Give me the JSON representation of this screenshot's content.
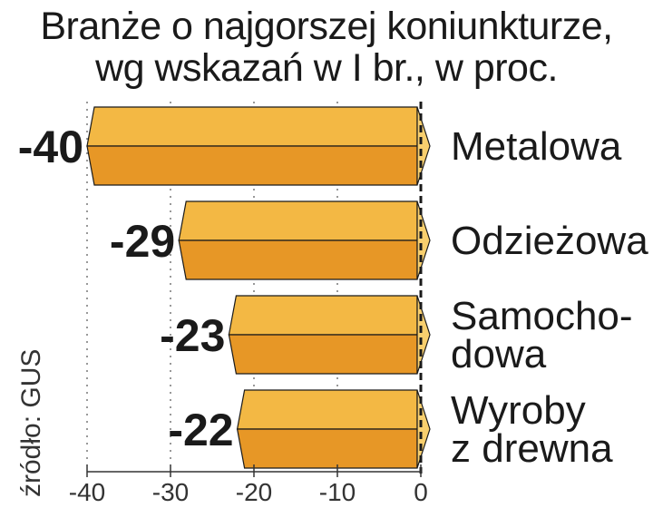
{
  "header": {
    "title_line1": "Branże o najgorszej koniunkturze,",
    "title_line2": "wg wskazań w I br., w proc."
  },
  "source": "źródło: GUS",
  "colors": {
    "bar_top": "#f3b844",
    "bar_bottom": "#e79726",
    "bar_tip": "#f8cf6e",
    "outline": "#1a1a1a",
    "grid": "#333333"
  },
  "chart_data": {
    "type": "bar",
    "orientation": "horizontal",
    "title": "Branże o najgorszej koniunkturze, wg wskazań w I br., w proc.",
    "categories": [
      [
        "Metalowa"
      ],
      [
        "Odzieżowa"
      ],
      [
        "Samocho-",
        "dowa"
      ],
      [
        "Wyroby",
        "z drewna"
      ]
    ],
    "values": [
      -40,
      -29,
      -23,
      -22
    ],
    "value_labels": [
      "-40",
      "-29",
      "-23",
      "-22"
    ],
    "xlim": [
      -40,
      0
    ],
    "xticks": [
      -40,
      -30,
      -20,
      -10,
      0
    ],
    "tick_labels": [
      "-40",
      "-30",
      "-20",
      "-10",
      "0"
    ],
    "grid": "vertical dashed",
    "legend": "none"
  }
}
